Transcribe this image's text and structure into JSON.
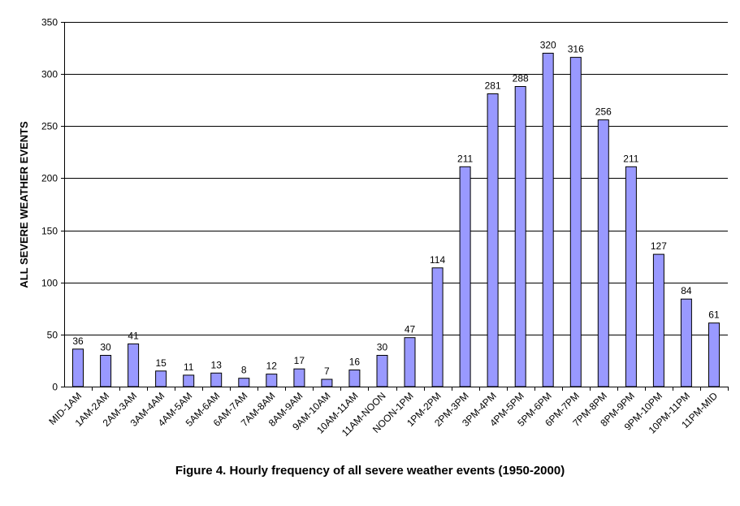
{
  "chart_data": {
    "type": "bar",
    "title": "Figure 4. Hourly frequency of all severe weather events (1950-2000)",
    "xlabel": "",
    "ylabel": "ALL SEVERE WEATHER EVENTS",
    "ylim": [
      0,
      350
    ],
    "yticks": [
      0,
      50,
      100,
      150,
      200,
      250,
      300,
      350
    ],
    "grid": true,
    "legend": "none",
    "bar_color": "#9999ff",
    "categories": [
      "MID-1AM",
      "1AM-2AM",
      "2AM-3AM",
      "3AM-4AM",
      "4AM-5AM",
      "5AM-6AM",
      "6AM-7AM",
      "7AM-8AM",
      "8AM-9AM",
      "9AM-10AM",
      "10AM-11AM",
      "11AM-NOON",
      "NOON-1PM",
      "1PM-2PM",
      "2PM-3PM",
      "3PM-4PM",
      "4PM-5PM",
      "5PM-6PM",
      "6PM-7PM",
      "7PM-8PM",
      "8PM-9PM",
      "9PM-10PM",
      "10PM-11PM",
      "11PM-MID"
    ],
    "values": [
      36,
      30,
      41,
      15,
      11,
      13,
      8,
      12,
      17,
      7,
      16,
      30,
      47,
      114,
      211,
      281,
      288,
      320,
      316,
      256,
      211,
      127,
      84,
      61
    ]
  }
}
